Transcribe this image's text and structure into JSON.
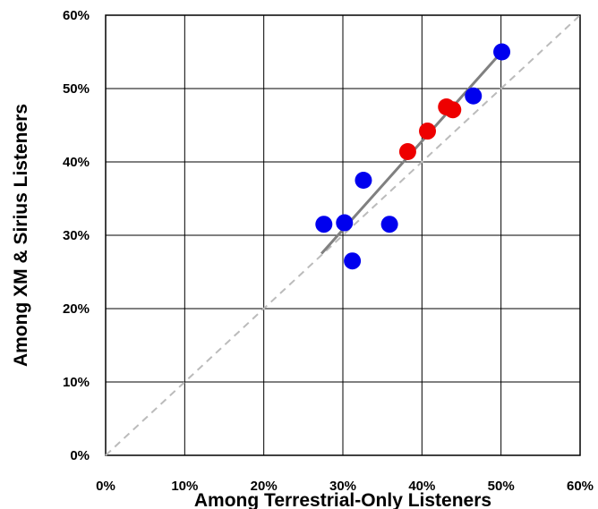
{
  "chart_data": {
    "type": "scatter",
    "title": "",
    "xlabel": "Among Terrestrial-Only Listeners",
    "ylabel": "Among XM & Sirius Listeners",
    "xlim": [
      0,
      60
    ],
    "ylim": [
      0,
      60
    ],
    "x_ticks": [
      "0%",
      "10%",
      "20%",
      "30%",
      "40%",
      "50%",
      "60%"
    ],
    "y_ticks": [
      "0%",
      "10%",
      "20%",
      "30%",
      "40%",
      "50%",
      "60%"
    ],
    "grid": true,
    "legend": "none",
    "colors": {
      "blue": "#0000ee",
      "red": "#ee0000",
      "trend": "#808080",
      "diagonal": "#bbbbbb"
    },
    "points": [
      {
        "x": 27.6,
        "y": 31.5,
        "color": "blue"
      },
      {
        "x": 30.2,
        "y": 31.7,
        "color": "blue"
      },
      {
        "x": 31.2,
        "y": 26.5,
        "color": "blue"
      },
      {
        "x": 32.6,
        "y": 37.5,
        "color": "blue"
      },
      {
        "x": 35.9,
        "y": 31.5,
        "color": "blue"
      },
      {
        "x": 46.5,
        "y": 49.0,
        "color": "blue"
      },
      {
        "x": 50.1,
        "y": 55.0,
        "color": "blue"
      },
      {
        "x": 38.2,
        "y": 41.4,
        "color": "red"
      },
      {
        "x": 40.7,
        "y": 44.2,
        "color": "red"
      },
      {
        "x": 43.1,
        "y": 47.5,
        "color": "red"
      },
      {
        "x": 43.9,
        "y": 47.1,
        "color": "red"
      }
    ],
    "trendline": {
      "x": [
        27.3,
        50.5
      ],
      "y": [
        27.5,
        55.5
      ]
    },
    "reference_line": {
      "x": [
        0,
        60
      ],
      "y": [
        0,
        60
      ]
    }
  }
}
